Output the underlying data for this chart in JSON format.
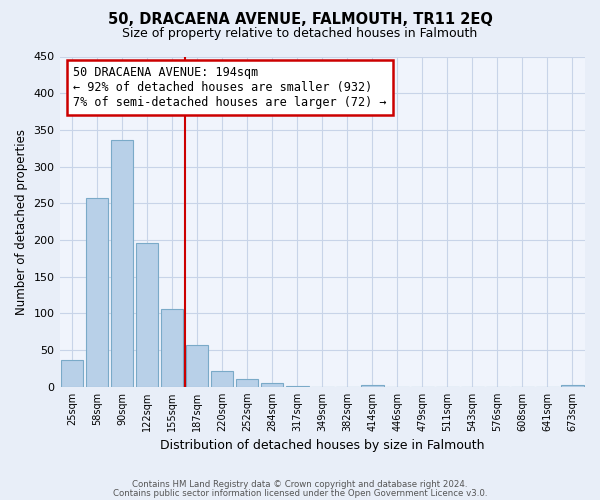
{
  "title": "50, DRACAENA AVENUE, FALMOUTH, TR11 2EQ",
  "subtitle": "Size of property relative to detached houses in Falmouth",
  "xlabel": "Distribution of detached houses by size in Falmouth",
  "ylabel": "Number of detached properties",
  "bin_labels": [
    "25sqm",
    "58sqm",
    "90sqm",
    "122sqm",
    "155sqm",
    "187sqm",
    "220sqm",
    "252sqm",
    "284sqm",
    "317sqm",
    "349sqm",
    "382sqm",
    "414sqm",
    "446sqm",
    "479sqm",
    "511sqm",
    "543sqm",
    "576sqm",
    "608sqm",
    "641sqm",
    "673sqm"
  ],
  "bar_heights": [
    36,
    257,
    336,
    196,
    106,
    57,
    21,
    11,
    5,
    1,
    0,
    0,
    2,
    0,
    0,
    0,
    0,
    0,
    0,
    0,
    2
  ],
  "bar_color": "#b8d0e8",
  "bar_edge_color": "#7aaac8",
  "property_line_label": "50 DRACAENA AVENUE: 194sqm",
  "annotation_line1": "← 92% of detached houses are smaller (932)",
  "annotation_line2": "7% of semi-detached houses are larger (72) →",
  "annotation_box_color": "#ffffff",
  "annotation_box_edge": "#cc0000",
  "vline_color": "#cc0000",
  "vline_x": 4.5,
  "ylim": [
    0,
    450
  ],
  "yticks": [
    0,
    50,
    100,
    150,
    200,
    250,
    300,
    350,
    400,
    450
  ],
  "footer1": "Contains HM Land Registry data © Crown copyright and database right 2024.",
  "footer2": "Contains public sector information licensed under the Open Government Licence v3.0.",
  "bg_color": "#e8eef8",
  "plot_bg_color": "#f0f4fc"
}
